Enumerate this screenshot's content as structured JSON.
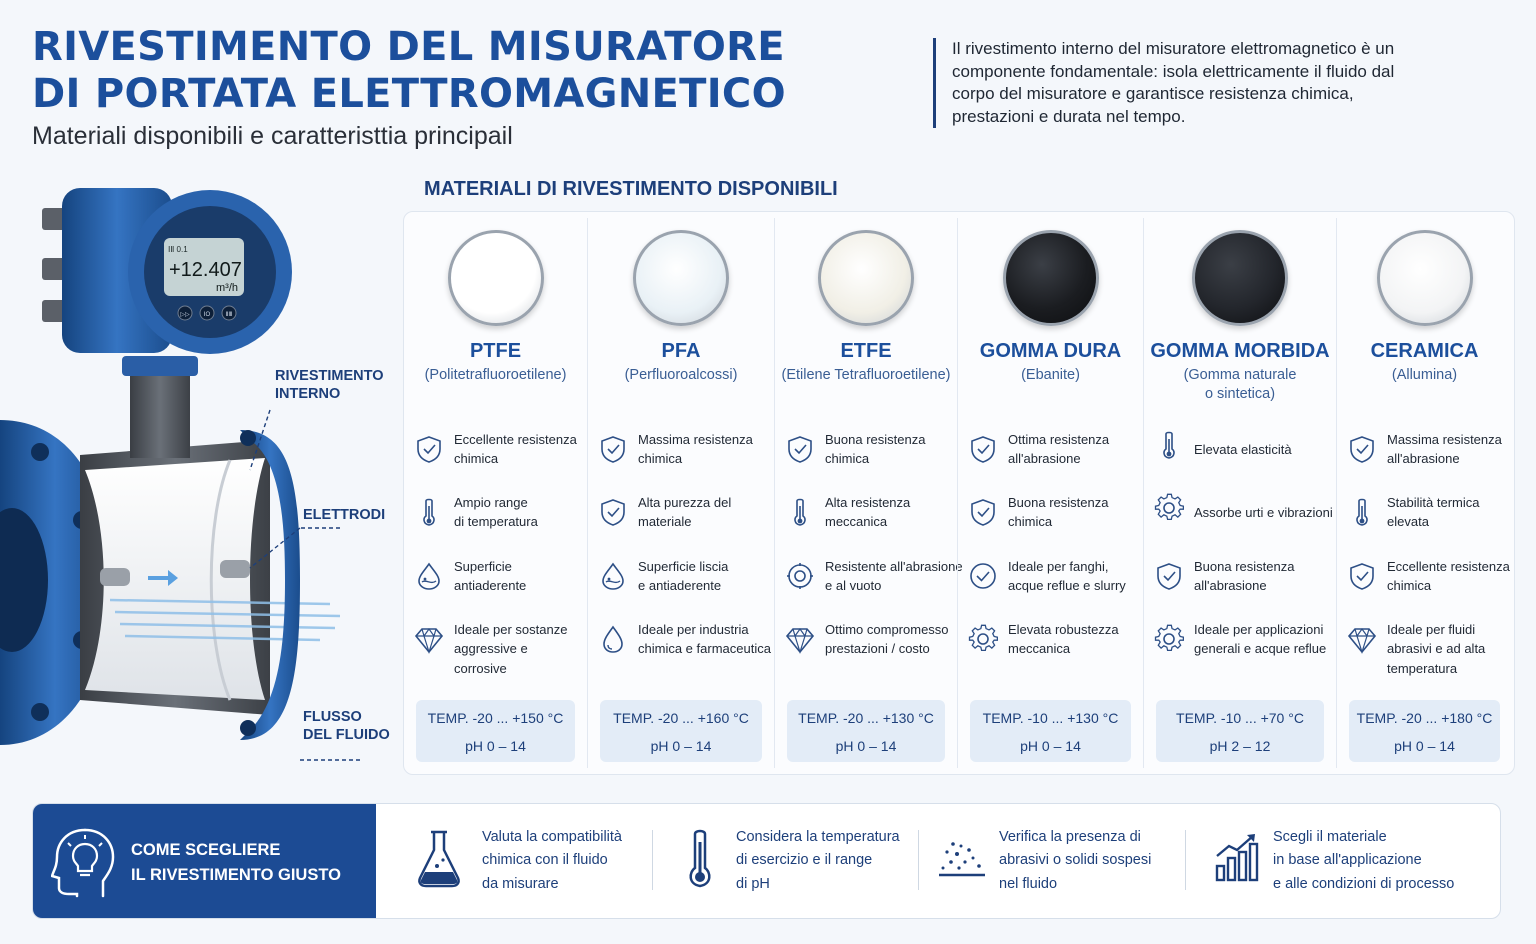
{
  "header": {
    "title_line1": "RIVESTIMENTO DEL MISURATORE",
    "title_line2": "DI PORTATA ELETTROMAGNETICO",
    "subtitle": "Materiali disponibili e caratteristtia principail",
    "intro": "Il rivestimento interno del misuratore elettromagnetico è un componente fondamentale: isola elettricamente il fluido dal corpo del misuratore e garantisce resistenza chimica, prestazioni e durata nel tempo."
  },
  "meter": {
    "display_small": "ⅠⅡ 0.1",
    "display_value": "+12.407",
    "display_unit": "m³/h",
    "buttons": [
      "▷▷",
      "ⅠO",
      "ⅡⅢ"
    ],
    "callouts": {
      "lining_line1": "RIVESTIMENTO",
      "lining_line2": "INTERNO",
      "electrodes": "ELETTRODI",
      "flow_line1": "FLUSSO",
      "flow_line2": "DEL FLUIDO"
    }
  },
  "materials_section": {
    "title": "MATERIALI DI RIVESTIMENTO DISPONIBILI",
    "materials": [
      {
        "name": "PTFE",
        "subtitle_line1": "(Politetrafluoroetilene)",
        "subtitle_line2": "",
        "disk_color": "#ffffff",
        "features": [
          {
            "icon": "shield-check",
            "line1": "Eccellente resistenza",
            "line2": "chimica",
            "line3": ""
          },
          {
            "icon": "thermometer",
            "line1": "Ampio range",
            "line2": "di temperatura",
            "line3": ""
          },
          {
            "icon": "drop-repel",
            "line1": "Superficie",
            "line2": "antiaderente",
            "line3": ""
          },
          {
            "icon": "diamond",
            "line1": "Ideale per sostanze",
            "line2": "aggressive e",
            "line3": "corrosive"
          }
        ],
        "temp": "TEMP. -20 ... +150 °C",
        "ph": "pH 0 – 14"
      },
      {
        "name": "PFA",
        "subtitle_line1": "(Perfluoroalcossi)",
        "subtitle_line2": "",
        "disk_color": "#e9f1f6",
        "features": [
          {
            "icon": "shield-check",
            "line1": "Massima resistenza",
            "line2": "chimica",
            "line3": ""
          },
          {
            "icon": "shield-check",
            "line1": "Alta purezza del",
            "line2": "materiale",
            "line3": ""
          },
          {
            "icon": "drop-repel",
            "line1": "Superficie liscia",
            "line2": "e antiaderente",
            "line3": ""
          },
          {
            "icon": "drop",
            "line1": "Ideale per industria",
            "line2": "chimica e farmaceutica",
            "line3": ""
          }
        ],
        "temp": "TEMP. -20 ... +160 °C",
        "ph": "pH 0 – 14"
      },
      {
        "name": "ETFE",
        "subtitle_line1": "(Etilene Tetrafluoroetilene)",
        "subtitle_line2": "",
        "disk_color": "#f1efe6",
        "features": [
          {
            "icon": "shield-check",
            "line1": "Buona resistenza",
            "line2": "chimica",
            "line3": ""
          },
          {
            "icon": "thermometer",
            "line1": "Alta resistenza",
            "line2": "meccanica",
            "line3": ""
          },
          {
            "icon": "gear-ring",
            "line1": "Resistente all'abrasione",
            "line2": "e al vuoto",
            "line3": ""
          },
          {
            "icon": "diamond",
            "line1": "Ottimo compromesso",
            "line2": "prestazioni / costo",
            "line3": ""
          }
        ],
        "temp": "TEMP. -20 ... +130 °C",
        "ph": "pH 0 – 14"
      },
      {
        "name": "GOMMA DURA",
        "subtitle_line1": "(Ebanite)",
        "subtitle_line2": "",
        "disk_color": "#1b1d21",
        "features": [
          {
            "icon": "shield-check",
            "line1": "Ottima resistenza",
            "line2": "all'abrasione",
            "line3": ""
          },
          {
            "icon": "shield-check",
            "line1": "Buona resistenza",
            "line2": "chimica",
            "line3": ""
          },
          {
            "icon": "check-circle",
            "line1": "Ideale per fanghi,",
            "line2": "acque reflue e slurry",
            "line3": ""
          },
          {
            "icon": "gear",
            "line1": "Elevata robustezza",
            "line2": "meccanica",
            "line3": ""
          }
        ],
        "temp": "TEMP. -10 ... +130 °C",
        "ph": "pH 0 – 14"
      },
      {
        "name": "GOMMA MORBIDA",
        "subtitle_line1": "(Gomma naturale",
        "subtitle_line2": "o sintetica)",
        "disk_color": "#23262c",
        "features": [
          {
            "icon": "thermometer",
            "line1": "Elevata elasticità",
            "line2": "",
            "line3": ""
          },
          {
            "icon": "gear",
            "line1": "Assorbe urti e vibrazioni",
            "line2": "",
            "line3": ""
          },
          {
            "icon": "shield-check",
            "line1": "Buona resistenza",
            "line2": "all'abrasione",
            "line3": ""
          },
          {
            "icon": "gear",
            "line1": "Ideale per applicazioni",
            "line2": "generali e acque reflue",
            "line3": ""
          }
        ],
        "temp": "TEMP. -10 ... +70 °C",
        "ph": "pH 2 – 12"
      },
      {
        "name": "CERAMICA",
        "subtitle_line1": "(Allumina)",
        "subtitle_line2": "",
        "disk_color": "#f3f4f5",
        "features": [
          {
            "icon": "shield-check",
            "line1": "Massima resistenza",
            "line2": "all'abrasione",
            "line3": ""
          },
          {
            "icon": "thermometer",
            "line1": "Stabilità termica",
            "line2": "elevata",
            "line3": ""
          },
          {
            "icon": "shield-check",
            "line1": "Eccellente resistenza",
            "line2": "chimica",
            "line3": ""
          },
          {
            "icon": "diamond",
            "line1": "Ideale per fluidi",
            "line2": "abrasivi e ad alta",
            "line3": "temperatura"
          }
        ],
        "temp": "TEMP. -20 ... +180 °C",
        "ph": "pH 0 – 14"
      }
    ]
  },
  "selection_guide": {
    "title_line1": "COME SCEGLIERE",
    "title_line2": "IL RIVESTIMENTO GIUSTO",
    "icon": "lightbulb-head",
    "steps": [
      {
        "icon": "flask",
        "line1": "Valuta la compatibilità",
        "line2": "chimica con il fluido",
        "line3": "da misurare"
      },
      {
        "icon": "thermometer",
        "line1": "Considera la temperatura",
        "line2": "di esercizio e il range",
        "line3": "di pH"
      },
      {
        "icon": "particles",
        "line1": "Verifica la presenza di",
        "line2": "abrasivi o solidi sospesi",
        "line3": "nel fluido"
      },
      {
        "icon": "bar-chart-growth",
        "line1": "Scegli il materiale",
        "line2": "in base all'applicazione",
        "line3": "e alle condizioni di processo"
      }
    ]
  },
  "colors": {
    "brand_blue": "#1c4f9c",
    "navy": "#1d3f7a",
    "spec_bg": "#e3ecf7",
    "meter_blue": "#2a63ad"
  }
}
